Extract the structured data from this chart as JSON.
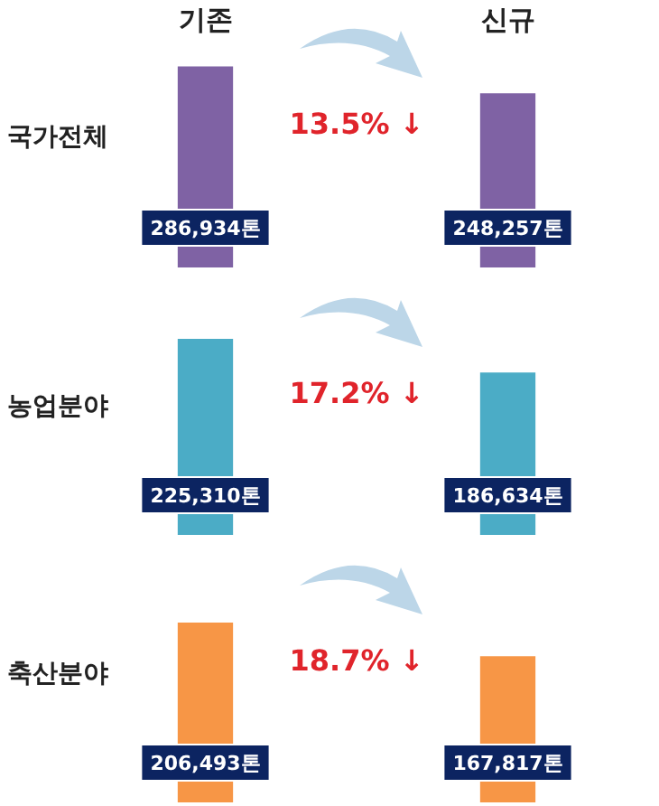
{
  "chart_data": [
    {
      "type": "bar",
      "ylabel": "국가전체",
      "categories": [
        "기존",
        "신규"
      ],
      "values": [
        286934,
        248257
      ],
      "color": "#7f62a4",
      "value_labels": [
        "286,934톤",
        "248,257톤"
      ],
      "annotations": [
        "13.5% ↓"
      ],
      "tick_labels": "x"
    },
    {
      "type": "bar",
      "ylabel": "농업분야",
      "categories": [
        null,
        null
      ],
      "values": [
        225310,
        186634
      ],
      "color": "#4bacc6",
      "value_labels": [
        "225,310톤",
        "186,634톤"
      ],
      "annotations": [
        "17.2% ↓"
      ],
      "tick_labels": false
    },
    {
      "type": "bar",
      "ylabel": "축산분야",
      "categories": [
        null,
        null
      ],
      "values": [
        206493,
        167817
      ],
      "color": "#f79646",
      "value_labels": [
        "206,493톤",
        "167,817톤"
      ],
      "annotations": [
        "18.7% ↓"
      ],
      "tick_labels": false
    }
  ]
}
